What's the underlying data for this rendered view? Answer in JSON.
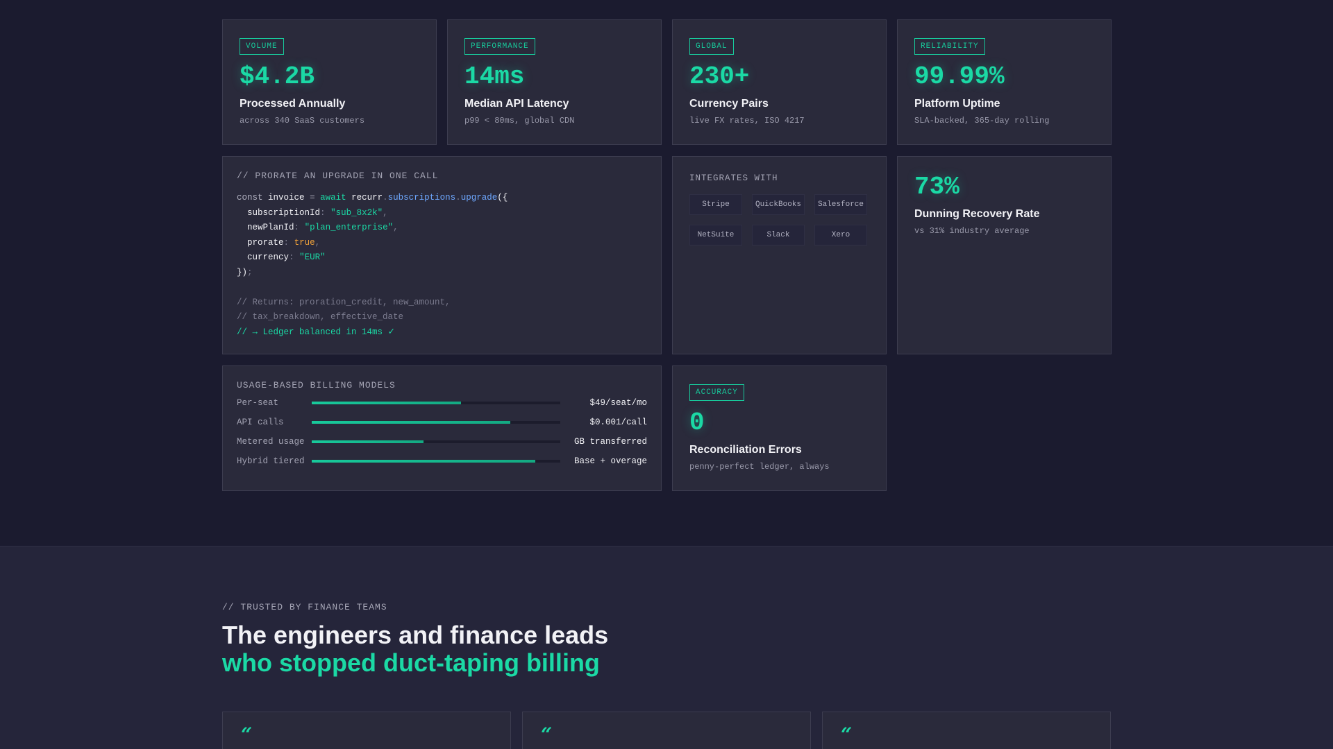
{
  "stats": [
    {
      "tag": "VOLUME",
      "value": "$4.2B",
      "title": "Processed Annually",
      "sub": "across 340 SaaS customers"
    },
    {
      "tag": "PERFORMANCE",
      "value": "14ms",
      "title": "Median API Latency",
      "sub": "p99 < 80ms, global CDN"
    },
    {
      "tag": "GLOBAL",
      "value": "230+",
      "title": "Currency Pairs",
      "sub": "live FX rates, ISO 4217"
    },
    {
      "tag": "RELIABILITY",
      "value": "99.99%",
      "title": "Platform Uptime",
      "sub": "SLA-backed, 365-day rolling"
    }
  ],
  "code": {
    "label": "// PRORATE AN UPGRADE IN ONE CALL",
    "l1": {
      "const": "const",
      "invoice": "invoice",
      "eq": "=",
      "await": "await",
      "recurr": "recurr",
      "dot1": ".",
      "subs": "subscriptions",
      "dot2": ".",
      "upgrade": "upgrade",
      "open": "({"
    },
    "l2": {
      "key": "subscriptionId",
      "colon": ":",
      "val": "\"sub_8x2k\"",
      "comma": ","
    },
    "l3": {
      "key": "newPlanId",
      "colon": ":",
      "val": "\"plan_enterprise\"",
      "comma": ","
    },
    "l4": {
      "key": "prorate",
      "colon": ":",
      "val": "true",
      "comma": ","
    },
    "l5": {
      "key": "currency",
      "colon": ":",
      "val": "\"EUR\""
    },
    "l6": {
      "close": "})",
      "semi": ";"
    },
    "c1": "// Returns: proration_credit, new_amount,",
    "c2": "// tax_breakdown, effective_date",
    "c3": "// → Ledger balanced in 14ms ✓"
  },
  "integrations": {
    "label": "INTEGRATES WITH",
    "items": [
      "Stripe",
      "QuickBooks",
      "Salesforce",
      "NetSuite",
      "Slack",
      "Xero"
    ]
  },
  "dunning": {
    "value": "73%",
    "title": "Dunning Recovery Rate",
    "sub": "vs 31% industry average"
  },
  "billing": {
    "label": "USAGE-BASED BILLING MODELS",
    "rows": [
      {
        "name": "Per-seat",
        "price": "$49/seat/mo",
        "fill_fraction": 0.6
      },
      {
        "name": "API calls",
        "price": "$0.001/call",
        "fill_fraction": 0.8
      },
      {
        "name": "Metered usage",
        "price": "GB transferred",
        "fill_fraction": 0.45
      },
      {
        "name": "Hybrid tiered",
        "price": "Base + overage",
        "fill_fraction": 0.9
      }
    ]
  },
  "accuracy": {
    "tag": "ACCURACY",
    "value": "0",
    "title": "Reconciliation Errors",
    "sub": "penny-perfect ledger, always"
  },
  "trusted": {
    "label": "// TRUSTED BY FINANCE TEAMS",
    "heading_line1": "The engineers and finance leads",
    "heading_line2": "who stopped duct-taping billing",
    "quote_mark": "“"
  },
  "colors": {
    "accent": "#1bd9a5",
    "background": "#1b1b2f",
    "card": "#2a2a3b",
    "string": "#1bd9a5",
    "function": "#6ea8ff",
    "boolean": "#f2a33a"
  }
}
